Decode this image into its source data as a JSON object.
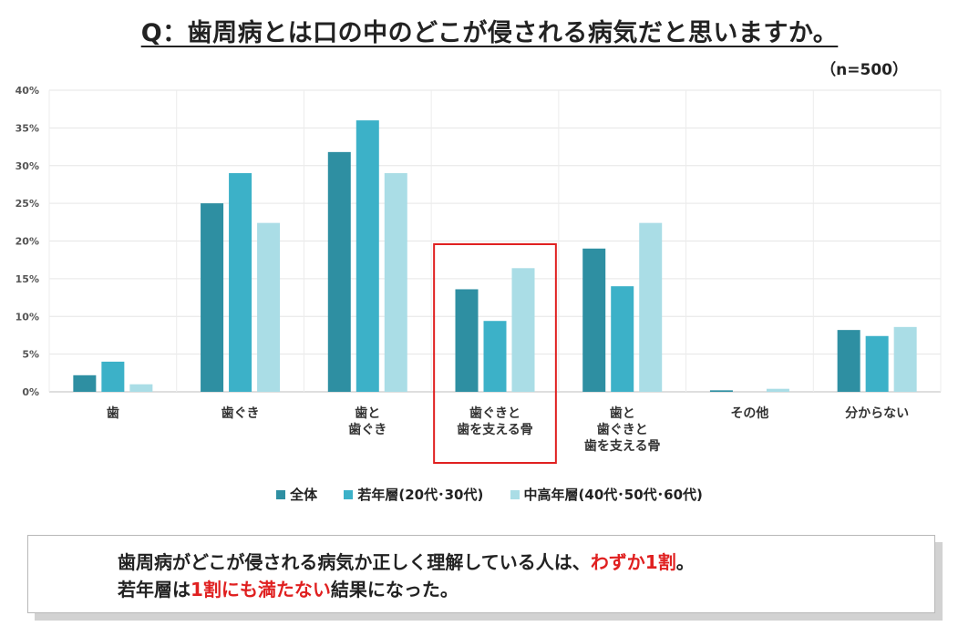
{
  "title": "Q：歯周病とは口の中のどこが侵される病気だと思いますか。",
  "sample_note": "（n=500）",
  "chart_data": {
    "type": "bar",
    "categories": [
      [
        "歯"
      ],
      [
        "歯ぐき"
      ],
      [
        "歯と",
        "歯ぐき"
      ],
      [
        "歯ぐきと",
        "歯を支える骨"
      ],
      [
        "歯と",
        "歯ぐきと",
        "歯を支える骨"
      ],
      [
        "その他"
      ],
      [
        "分からない"
      ]
    ],
    "series": [
      {
        "name": "全体",
        "color": "#2e8fa2",
        "values": [
          2.2,
          25.0,
          31.8,
          13.6,
          19.0,
          0.2,
          8.2
        ]
      },
      {
        "name": "若年層(20代･30代)",
        "color": "#3cb1c8",
        "values": [
          4.0,
          29.0,
          36.0,
          9.4,
          14.0,
          0.0,
          7.4
        ]
      },
      {
        "name": "中高年層(40代･50代･60代)",
        "color": "#aadde6",
        "values": [
          1.0,
          22.4,
          29.0,
          16.4,
          22.4,
          0.4,
          8.6
        ]
      }
    ],
    "yticks": [
      "0%",
      "5%",
      "10%",
      "15%",
      "20%",
      "25%",
      "30%",
      "35%",
      "40%"
    ],
    "ylim": [
      0,
      40
    ],
    "highlight_category_index": 3,
    "grid": true,
    "legend": "bottom"
  },
  "conclusion": {
    "line1_a": "歯周病がどこが侵される病気か正しく理解している人は、",
    "line1_highlight": "わずか1割",
    "line1_b": "。",
    "line2_a": "若年層は",
    "line2_highlight": "1割にも満たない",
    "line2_b": "結果になった。"
  }
}
